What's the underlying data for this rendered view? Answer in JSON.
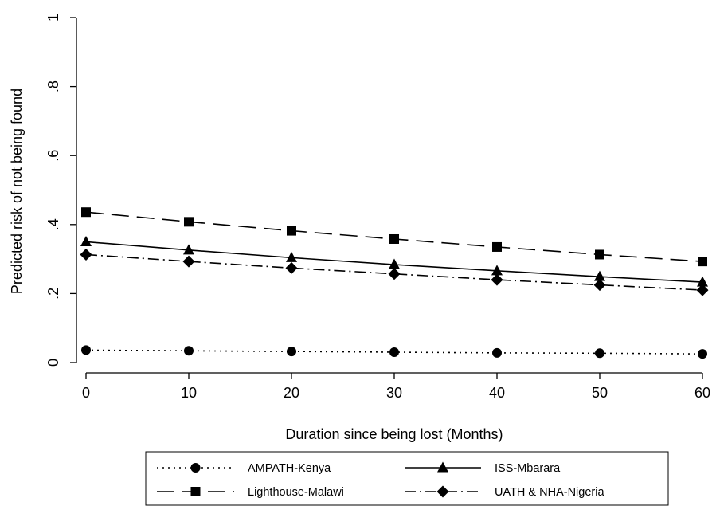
{
  "chart_data": {
    "type": "line",
    "xlabel": "Duration since being lost (Months)",
    "ylabel": "Predicted risk of not being found",
    "x": [
      0,
      10,
      20,
      30,
      40,
      50,
      60
    ],
    "xticks": [
      0,
      10,
      20,
      30,
      40,
      50,
      60
    ],
    "xtick_labels": [
      "0",
      "10",
      "20",
      "30",
      "40",
      "50",
      "60"
    ],
    "yticks": [
      0,
      0.2,
      0.4,
      0.6,
      0.8,
      1
    ],
    "ytick_labels": [
      "0",
      ".2",
      ".4",
      ".6",
      ".8",
      "1"
    ],
    "xlim": [
      0,
      60
    ],
    "ylim": [
      0,
      1
    ],
    "grid": false,
    "legend_position": "bottom",
    "series": [
      {
        "name": "AMPATH-Kenya",
        "marker": "circle",
        "dash": "dotted",
        "color": "#000000",
        "values": [
          0.036,
          0.034,
          0.032,
          0.03,
          0.028,
          0.027,
          0.025
        ]
      },
      {
        "name": "ISS-Mbarara",
        "marker": "triangle",
        "dash": "solid",
        "color": "#000000",
        "values": [
          0.35,
          0.326,
          0.304,
          0.284,
          0.266,
          0.249,
          0.233
        ]
      },
      {
        "name": "Lighthouse-Malawi",
        "marker": "square",
        "dash": "long-dash",
        "color": "#000000",
        "values": [
          0.436,
          0.408,
          0.382,
          0.358,
          0.335,
          0.313,
          0.293
        ]
      },
      {
        "name": "UATH & NHA-Nigeria",
        "marker": "diamond",
        "dash": "dash-dot",
        "color": "#000000",
        "values": [
          0.313,
          0.293,
          0.274,
          0.257,
          0.24,
          0.225,
          0.21
        ]
      }
    ]
  }
}
